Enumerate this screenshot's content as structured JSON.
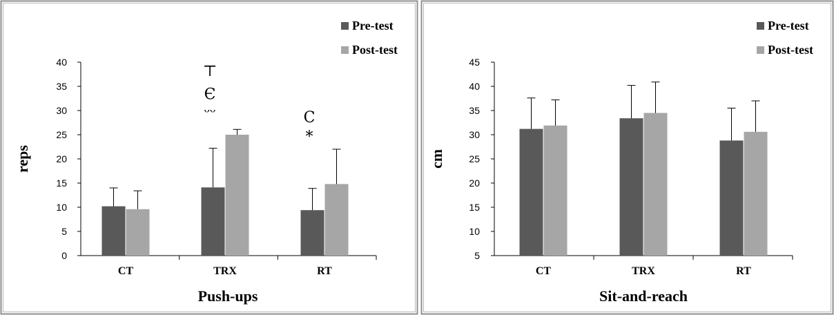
{
  "chart_data": [
    {
      "type": "bar",
      "xlabel": "Push-ups",
      "ylabel": "reps",
      "categories": [
        "CT",
        "TRX",
        "RT"
      ],
      "ylim": [
        0,
        40
      ],
      "yticks": [
        0,
        5,
        10,
        15,
        20,
        25,
        30,
        35,
        40
      ],
      "legend_position": "top-right",
      "grid": false,
      "series": [
        {
          "name": "Pre-test",
          "color": "#595959",
          "values": [
            10.2,
            14.1,
            9.4
          ],
          "errors": [
            3.8,
            8.1,
            4.5
          ]
        },
        {
          "name": "Post-test",
          "color": "#a6a6a6",
          "values": [
            9.6,
            25.0,
            14.8
          ],
          "errors": [
            3.8,
            1.1,
            7.2
          ]
        }
      ],
      "annotations": [
        {
          "text": "⊤",
          "category": 1,
          "y": 38.3
        },
        {
          "text": "Є",
          "category": 1,
          "y": 33.5
        },
        {
          "text": "ᵕᵕ",
          "category": 1,
          "y": 29.7
        },
        {
          "text": "C",
          "category": 2,
          "y": 28.7
        },
        {
          "text": "*",
          "category": 2,
          "y": 24.7
        }
      ]
    },
    {
      "type": "bar",
      "xlabel": "Sit-and-reach",
      "ylabel": "cm",
      "categories": [
        "CT",
        "TRX",
        "RT"
      ],
      "ylim": [
        5,
        45
      ],
      "yticks": [
        5,
        10,
        15,
        20,
        25,
        30,
        35,
        40,
        45
      ],
      "legend_position": "top-right",
      "grid": false,
      "series": [
        {
          "name": "Pre-test",
          "color": "#595959",
          "values": [
            31.2,
            33.4,
            28.8
          ],
          "errors": [
            6.4,
            6.8,
            6.7
          ]
        },
        {
          "name": "Post-test",
          "color": "#a6a6a6",
          "values": [
            31.9,
            34.5,
            30.6
          ],
          "errors": [
            5.3,
            6.4,
            6.4
          ]
        }
      ],
      "annotations": []
    }
  ]
}
